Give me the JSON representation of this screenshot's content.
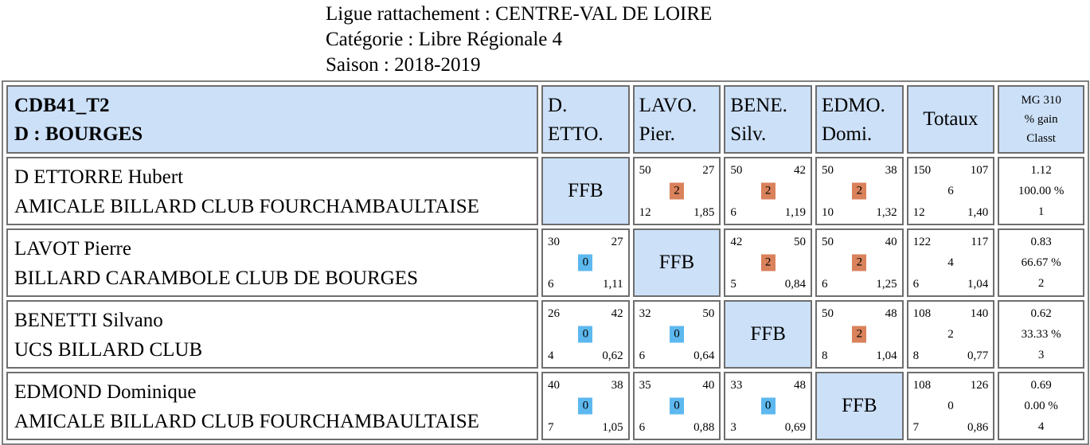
{
  "header": {
    "ligue": "Ligue rattachement : CENTRE-VAL DE LOIRE",
    "categorie": "Catégorie : Libre Régionale 4",
    "saison": "Saison : 2018-2019"
  },
  "table": {
    "group_line1": "CDB41_T2",
    "group_line2": "D : BOURGES",
    "columns": [
      {
        "line1": "D.",
        "line2": "ETTO."
      },
      {
        "line1": "LAVO.",
        "line2": "Pier."
      },
      {
        "line1": "BENE.",
        "line2": "Silv."
      },
      {
        "line1": "EDMO.",
        "line2": "Domi."
      }
    ],
    "totals_header": "Totaux",
    "mg_header": {
      "line1": "MG 310",
      "line2": "% gain",
      "line3": "Classt"
    },
    "ffb_label": "FFB",
    "rows": [
      {
        "name": "D ETTORRE Hubert",
        "club": "AMICALE BILLARD CLUB FOURCHAMBAULTAISE",
        "matches": [
          null,
          {
            "pts": "50",
            "opp": "27",
            "score": "2",
            "result": "win",
            "rep": "12",
            "moy": "1,85"
          },
          {
            "pts": "50",
            "opp": "42",
            "score": "2",
            "result": "win",
            "rep": "6",
            "moy": "1,19"
          },
          {
            "pts": "50",
            "opp": "38",
            "score": "2",
            "result": "win",
            "rep": "10",
            "moy": "1,32"
          }
        ],
        "totals": {
          "pts": "150",
          "opp": "107",
          "score": "6",
          "rep": "12",
          "moy": "1,40"
        },
        "mg": {
          "mg": "1.12",
          "gain": "100.00 %",
          "rank": "1"
        }
      },
      {
        "name": "LAVOT Pierre",
        "club": "BILLARD CARAMBOLE CLUB DE BOURGES",
        "matches": [
          {
            "pts": "30",
            "opp": "27",
            "score": "0",
            "result": "loss",
            "rep": "6",
            "moy": "1,11"
          },
          null,
          {
            "pts": "42",
            "opp": "50",
            "score": "2",
            "result": "win",
            "rep": "5",
            "moy": "0,84"
          },
          {
            "pts": "50",
            "opp": "40",
            "score": "2",
            "result": "win",
            "rep": "6",
            "moy": "1,25"
          }
        ],
        "totals": {
          "pts": "122",
          "opp": "117",
          "score": "4",
          "rep": "6",
          "moy": "1,04"
        },
        "mg": {
          "mg": "0.83",
          "gain": "66.67 %",
          "rank": "2"
        }
      },
      {
        "name": "BENETTI Silvano",
        "club": "UCS BILLARD CLUB",
        "matches": [
          {
            "pts": "26",
            "opp": "42",
            "score": "0",
            "result": "loss",
            "rep": "4",
            "moy": "0,62"
          },
          {
            "pts": "32",
            "opp": "50",
            "score": "0",
            "result": "loss",
            "rep": "6",
            "moy": "0,64"
          },
          null,
          {
            "pts": "50",
            "opp": "48",
            "score": "2",
            "result": "win",
            "rep": "8",
            "moy": "1,04"
          }
        ],
        "totals": {
          "pts": "108",
          "opp": "140",
          "score": "2",
          "rep": "8",
          "moy": "0,77"
        },
        "mg": {
          "mg": "0.62",
          "gain": "33.33 %",
          "rank": "3"
        }
      },
      {
        "name": "EDMOND Dominique",
        "club": "AMICALE BILLARD CLUB FOURCHAMBAULTAISE",
        "matches": [
          {
            "pts": "40",
            "opp": "38",
            "score": "0",
            "result": "loss",
            "rep": "7",
            "moy": "1,05"
          },
          {
            "pts": "35",
            "opp": "40",
            "score": "0",
            "result": "loss",
            "rep": "6",
            "moy": "0,88"
          },
          {
            "pts": "33",
            "opp": "48",
            "score": "0",
            "result": "loss",
            "rep": "3",
            "moy": "0,69"
          },
          null
        ],
        "totals": {
          "pts": "108",
          "opp": "126",
          "score": "0",
          "rep": "7",
          "moy": "0,86"
        },
        "mg": {
          "mg": "0.69",
          "gain": "0.00 %",
          "rank": "4"
        }
      }
    ]
  },
  "colors": {
    "header_bg": "#cce0f8",
    "win_badge": "#d9825c",
    "loss_badge": "#5db8ef"
  }
}
